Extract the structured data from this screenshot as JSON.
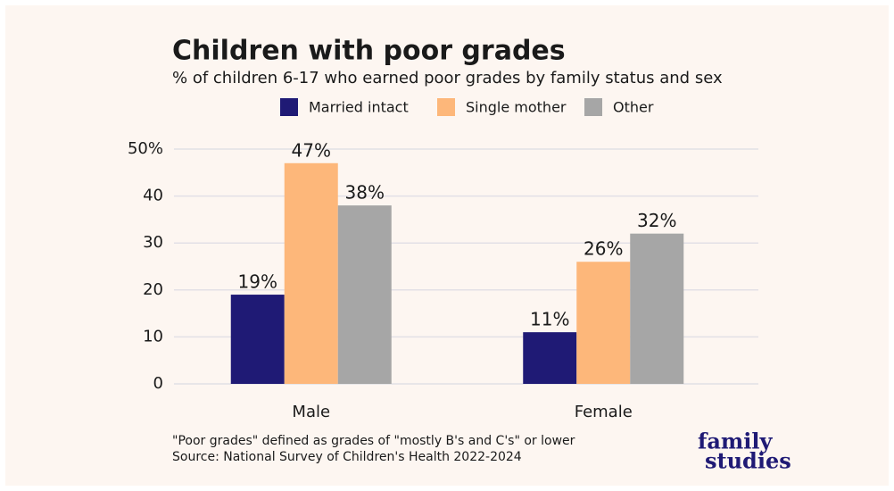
{
  "chart_data": {
    "type": "bar",
    "title": "Children with poor grades",
    "subtitle": "% of children 6-17 who earned poor grades by family status and sex",
    "categories": [
      "Male",
      "Female"
    ],
    "series": [
      {
        "name": "Married intact",
        "color": "#1f1a75",
        "values": [
          19,
          11
        ],
        "value_labels": [
          "19%",
          "11%"
        ]
      },
      {
        "name": "Single mother",
        "color": "#fdb77a",
        "values": [
          47,
          26
        ],
        "value_labels": [
          "47%",
          "26%"
        ]
      },
      {
        "name": "Other",
        "color": "#a6a6a6",
        "values": [
          38,
          32
        ],
        "value_labels": [
          "38%",
          "32%"
        ]
      }
    ],
    "ylim": [
      0,
      50
    ],
    "yticks": [
      0,
      10,
      20,
      30,
      40,
      {
        "value": 50,
        "label": "50%"
      }
    ],
    "grid": true,
    "legend": "top",
    "notes": [
      "\"Poor grades\" defined as grades of \"mostly B's and C's\" or lower",
      "Source: National Survey of Children's Health 2022-2024"
    ],
    "logo": [
      "family",
      "studies"
    ]
  }
}
